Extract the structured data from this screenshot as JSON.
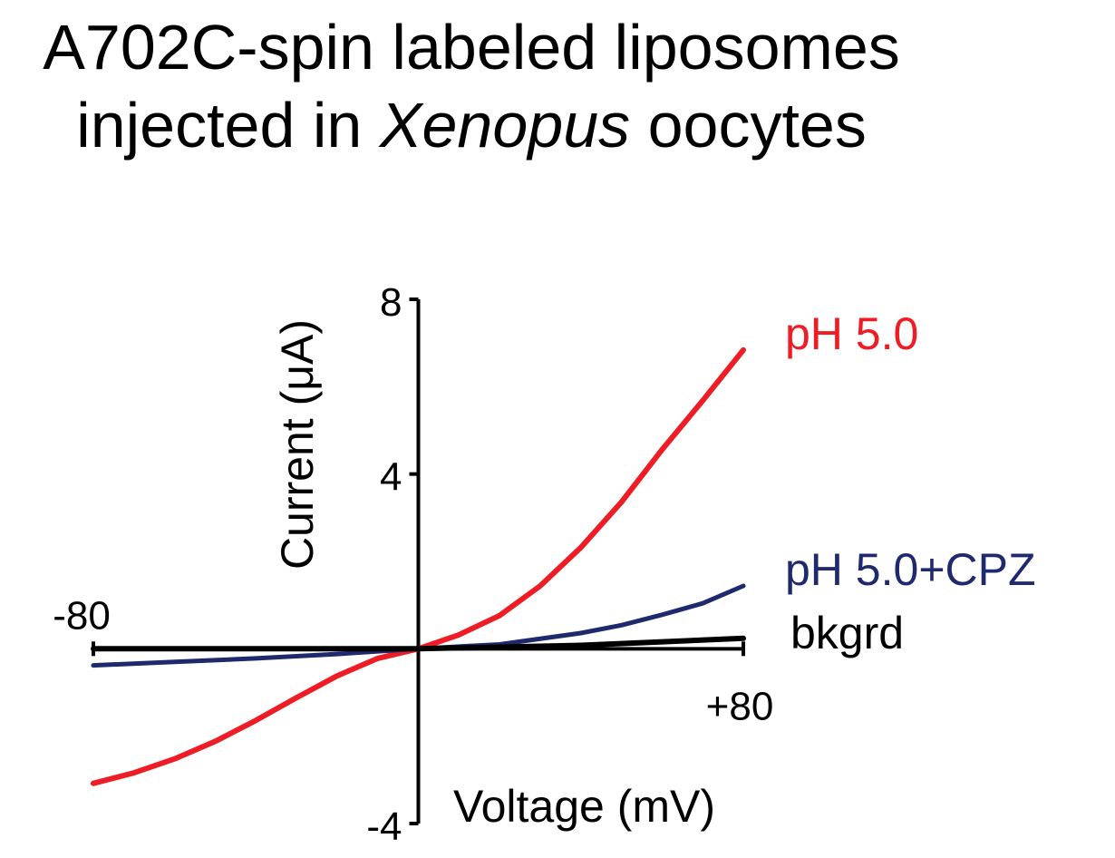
{
  "chart_data": {
    "type": "line",
    "title_line_1": "A702C-spin labeled liposomes",
    "title_line_2_prefix": "injected in ",
    "title_line_2_italic": "Xenopus",
    "title_line_2_suffix": " oocytes",
    "xlabel": "Voltage (mV)",
    "ylabel": "Current (μA)",
    "xlim": [
      -80,
      80
    ],
    "ylim": [
      -4,
      8
    ],
    "x_tick_labels": {
      "min": "-80",
      "max": "+80"
    },
    "y_tick_labels": {
      "top": "8",
      "mid": "4",
      "bottom": "-4"
    },
    "y_ticks": [
      8,
      4,
      -4
    ],
    "series": [
      {
        "name": "pH 5.0",
        "color": "#ee1c24",
        "x": [
          -80,
          -70,
          -60,
          -50,
          -40,
          -30,
          -20,
          -10,
          0,
          10,
          20,
          30,
          40,
          50,
          60,
          70,
          80
        ],
        "y": [
          -3.08,
          -2.84,
          -2.52,
          -2.12,
          -1.64,
          -1.12,
          -0.62,
          -0.22,
          0.0,
          0.32,
          0.76,
          1.44,
          2.32,
          3.36,
          4.56,
          5.68,
          6.84
        ]
      },
      {
        "name": "pH 5.0+CPZ",
        "color": "#1f2a6e",
        "x": [
          -80,
          -60,
          -40,
          -20,
          0,
          20,
          40,
          50,
          60,
          70,
          80
        ],
        "y": [
          -0.38,
          -0.3,
          -0.22,
          -0.12,
          0.0,
          0.1,
          0.36,
          0.54,
          0.78,
          1.04,
          1.44
        ]
      },
      {
        "name": "bkgrd",
        "color": "#000000",
        "x": [
          -80,
          -40,
          0,
          40,
          80
        ],
        "y": [
          0.0,
          0.0,
          0.0,
          0.08,
          0.24
        ]
      }
    ]
  }
}
